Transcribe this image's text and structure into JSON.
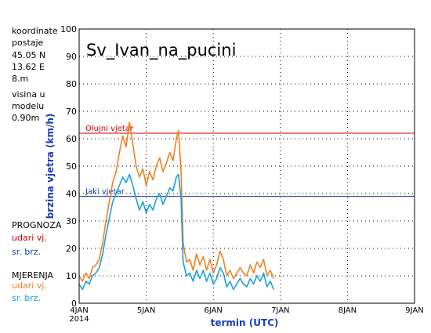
{
  "info": {
    "lines": [
      "koordinate",
      "postaje",
      "45.05 N",
      "13.62 E",
      "8.m",
      "visina u",
      "modelu",
      "0.90m"
    ]
  },
  "legend": {
    "prognoza_title": "PROGNOZA",
    "prognoza_gust": "udari vj.",
    "prognoza_mean": "sr. brz.",
    "mjerenja_title": "MJERENJA",
    "mjerenja_gust": "udari vj.",
    "mjerenja_mean": "sr. brz."
  },
  "colors": {
    "gust": "#f08020",
    "mean": "#18a0dc",
    "storm_line": "#cc0000",
    "strong_line": "#1a3fb0",
    "axis_label": "#1a3fb0",
    "grid": "#000000"
  },
  "chart_data": {
    "type": "line",
    "title": "Sv_Ivan_na_pucini",
    "xlabel": "termin (UTC)",
    "ylabel": "brzina vjetra (km/h)",
    "ylim": [
      0,
      100
    ],
    "xlim": [
      0,
      5
    ],
    "x_unit": "days from 4JAN 2014 00 UTC",
    "yticks": [
      0,
      10,
      20,
      30,
      40,
      50,
      60,
      70,
      80,
      90,
      100
    ],
    "xticks": [
      {
        "x": 0,
        "label": "4JAN",
        "sub": "2014"
      },
      {
        "x": 1,
        "label": "5JAN",
        "sub": ""
      },
      {
        "x": 2,
        "label": "6JAN",
        "sub": ""
      },
      {
        "x": 3,
        "label": "7JAN",
        "sub": ""
      },
      {
        "x": 4,
        "label": "8JAN",
        "sub": ""
      },
      {
        "x": 5,
        "label": "9JAN",
        "sub": ""
      }
    ],
    "thresholds": [
      {
        "label": "Olujni vjetar",
        "value": 62,
        "color": "#cc0000"
      },
      {
        "label": "Jaki vjetar",
        "value": 39,
        "color": "#1a3fb0"
      }
    ],
    "grid": "dotted",
    "series": [
      {
        "name": "udari vj.",
        "color": "#f08020",
        "points": [
          [
            0.0,
            10
          ],
          [
            0.05,
            8
          ],
          [
            0.1,
            11
          ],
          [
            0.15,
            9
          ],
          [
            0.2,
            13
          ],
          [
            0.25,
            14
          ],
          [
            0.3,
            16
          ],
          [
            0.35,
            22
          ],
          [
            0.4,
            30
          ],
          [
            0.45,
            37
          ],
          [
            0.5,
            44
          ],
          [
            0.55,
            48
          ],
          [
            0.6,
            55
          ],
          [
            0.65,
            61
          ],
          [
            0.7,
            57
          ],
          [
            0.75,
            66
          ],
          [
            0.8,
            58
          ],
          [
            0.85,
            50
          ],
          [
            0.9,
            46
          ],
          [
            0.95,
            49
          ],
          [
            1.0,
            43
          ],
          [
            1.05,
            48
          ],
          [
            1.1,
            45
          ],
          [
            1.15,
            50
          ],
          [
            1.2,
            53
          ],
          [
            1.25,
            48
          ],
          [
            1.3,
            51
          ],
          [
            1.35,
            55
          ],
          [
            1.4,
            52
          ],
          [
            1.45,
            60
          ],
          [
            1.48,
            63
          ],
          [
            1.52,
            48
          ],
          [
            1.55,
            22
          ],
          [
            1.6,
            15
          ],
          [
            1.65,
            16
          ],
          [
            1.7,
            12
          ],
          [
            1.75,
            18
          ],
          [
            1.8,
            14
          ],
          [
            1.85,
            17
          ],
          [
            1.9,
            12
          ],
          [
            1.95,
            16
          ],
          [
            2.0,
            11
          ],
          [
            2.05,
            14
          ],
          [
            2.1,
            19
          ],
          [
            2.15,
            16
          ],
          [
            2.2,
            10
          ],
          [
            2.25,
            12
          ],
          [
            2.3,
            9
          ],
          [
            2.35,
            11
          ],
          [
            2.4,
            13
          ],
          [
            2.45,
            11
          ],
          [
            2.5,
            10
          ],
          [
            2.55,
            14
          ],
          [
            2.6,
            11
          ],
          [
            2.65,
            15
          ],
          [
            2.7,
            13
          ],
          [
            2.75,
            16
          ],
          [
            2.8,
            10
          ],
          [
            2.85,
            12
          ],
          [
            2.9,
            9
          ]
        ]
      },
      {
        "name": "sr. brz.",
        "color": "#18a0dc",
        "points": [
          [
            0.0,
            7
          ],
          [
            0.05,
            5
          ],
          [
            0.1,
            8
          ],
          [
            0.15,
            7
          ],
          [
            0.2,
            10
          ],
          [
            0.25,
            11
          ],
          [
            0.3,
            13
          ],
          [
            0.35,
            18
          ],
          [
            0.4,
            25
          ],
          [
            0.45,
            31
          ],
          [
            0.5,
            37
          ],
          [
            0.55,
            40
          ],
          [
            0.6,
            43
          ],
          [
            0.65,
            46
          ],
          [
            0.7,
            44
          ],
          [
            0.75,
            47
          ],
          [
            0.8,
            43
          ],
          [
            0.85,
            38
          ],
          [
            0.9,
            34
          ],
          [
            0.95,
            37
          ],
          [
            1.0,
            33
          ],
          [
            1.05,
            36
          ],
          [
            1.1,
            34
          ],
          [
            1.15,
            38
          ],
          [
            1.2,
            40
          ],
          [
            1.25,
            36
          ],
          [
            1.3,
            39
          ],
          [
            1.35,
            42
          ],
          [
            1.4,
            41
          ],
          [
            1.45,
            46
          ],
          [
            1.48,
            47
          ],
          [
            1.52,
            38
          ],
          [
            1.55,
            15
          ],
          [
            1.6,
            10
          ],
          [
            1.65,
            11
          ],
          [
            1.7,
            8
          ],
          [
            1.75,
            12
          ],
          [
            1.8,
            9
          ],
          [
            1.85,
            12
          ],
          [
            1.9,
            8
          ],
          [
            1.95,
            11
          ],
          [
            2.0,
            7
          ],
          [
            2.05,
            9
          ],
          [
            2.1,
            13
          ],
          [
            2.15,
            11
          ],
          [
            2.2,
            6
          ],
          [
            2.25,
            8
          ],
          [
            2.3,
            5
          ],
          [
            2.35,
            7
          ],
          [
            2.4,
            9
          ],
          [
            2.45,
            7
          ],
          [
            2.5,
            6
          ],
          [
            2.55,
            9
          ],
          [
            2.6,
            7
          ],
          [
            2.65,
            10
          ],
          [
            2.7,
            8
          ],
          [
            2.75,
            11
          ],
          [
            2.8,
            6
          ],
          [
            2.85,
            8
          ],
          [
            2.9,
            5
          ]
        ]
      }
    ]
  }
}
